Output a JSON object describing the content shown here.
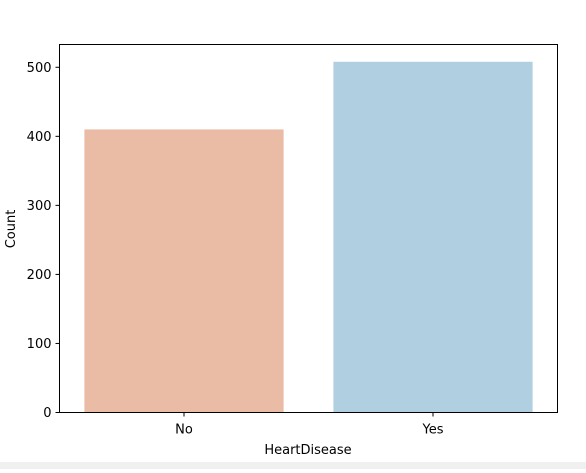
{
  "chart_data": {
    "type": "bar",
    "categories": [
      "No",
      "Yes"
    ],
    "values": [
      410,
      508
    ],
    "title": "",
    "xlabel": "HeartDisease",
    "ylabel": "Count",
    "ylim": [
      0,
      533
    ],
    "yticks": [
      0,
      100,
      200,
      300,
      400,
      500
    ],
    "grid": false,
    "colors": [
      "#eabba5",
      "#b0cfe1"
    ]
  }
}
